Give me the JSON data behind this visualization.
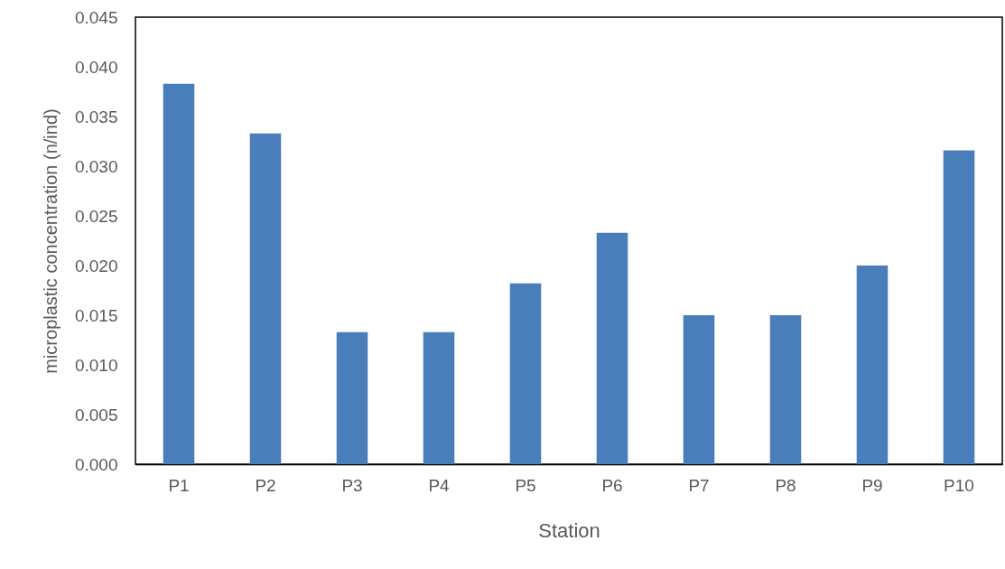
{
  "chart_data": {
    "type": "bar",
    "xlabel": "Station",
    "ylabel": "microplastic concentration  (n/ind)",
    "categories": [
      "P1",
      "P2",
      "P3",
      "P4",
      "P5",
      "P6",
      "P7",
      "P8",
      "P9",
      "P10"
    ],
    "values": [
      0.0383,
      0.0333,
      0.0133,
      0.0133,
      0.0182,
      0.0233,
      0.015,
      0.015,
      0.02,
      0.0316
    ],
    "color": "#4a7ebb",
    "ylim": [
      0,
      0.045
    ],
    "yticks": [
      {
        "value": 0,
        "label": "0.000"
      },
      0.005,
      {
        "value": 0.01,
        "label": "0.010"
      },
      0.015,
      {
        "value": 0.02,
        "label": "0.020"
      },
      0.025,
      {
        "value": 0.03,
        "label": "0.030"
      },
      0.035,
      {
        "value": 0.04,
        "label": "0.040"
      },
      0.045
    ],
    "grid": false
  }
}
